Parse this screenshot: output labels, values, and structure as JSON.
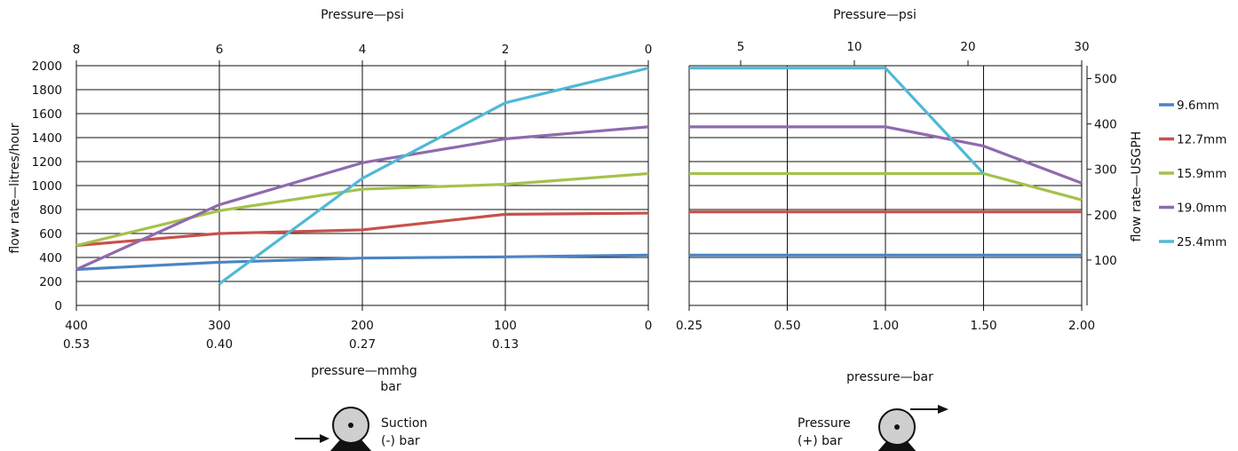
{
  "chart_data": [
    {
      "type": "line",
      "panel": "suction",
      "top_axis_label": "Pressure—psi",
      "top_ticks": [
        "8",
        "6",
        "4",
        "2",
        "0"
      ],
      "ylabel": "flow rate—litres/hour",
      "yticks": [
        "0",
        "200",
        "400",
        "600",
        "800",
        "1000",
        "1200",
        "1400",
        "1600",
        "1800",
        "2000"
      ],
      "ylim": [
        0,
        2000
      ],
      "bottom_ticks_mmhg": [
        "400",
        "300",
        "200",
        "100",
        "0"
      ],
      "bottom_ticks_bar": [
        "0.53",
        "0.40",
        "0.27",
        "0.13"
      ],
      "xlabel_mmhg": "pressure—mmhg",
      "xlabel_bar": "bar",
      "xlim_mmhg": [
        400,
        0
      ],
      "grid": true,
      "series": [
        {
          "name": "9.6mm",
          "color": "#4a84c4",
          "x": [
            400,
            300,
            200,
            100,
            0
          ],
          "y": [
            300,
            360,
            395,
            405,
            420
          ]
        },
        {
          "name": "12.7mm",
          "color": "#c8504a",
          "x": [
            400,
            300,
            200,
            100,
            0
          ],
          "y": [
            500,
            600,
            630,
            760,
            770
          ]
        },
        {
          "name": "15.9mm",
          "color": "#a4c24a",
          "x": [
            400,
            300,
            200,
            100,
            0
          ],
          "y": [
            500,
            790,
            970,
            1010,
            1100
          ]
        },
        {
          "name": "19.0mm",
          "color": "#8e6aae",
          "x": [
            400,
            300,
            200,
            100,
            0
          ],
          "y": [
            300,
            840,
            1190,
            1390,
            1490
          ]
        },
        {
          "name": "25.4mm",
          "color": "#52b8d6",
          "x": [
            300,
            200,
            100,
            0
          ],
          "y": [
            180,
            1060,
            1690,
            1980
          ]
        }
      ]
    },
    {
      "type": "line",
      "panel": "pressure",
      "top_axis_label": "Pressure—psi",
      "top_ticks": [
        "5",
        "10",
        "20",
        "30"
      ],
      "ylabel": "flow rate—USGPH",
      "yticks": [
        "100",
        "200",
        "300",
        "400",
        "500"
      ],
      "bottom_ticks": [
        "0.25",
        "0.50",
        "1.00",
        "1.50",
        "2.00"
      ],
      "xlabel": "pressure—bar",
      "grid": true,
      "series": [
        {
          "name": "9.6mm",
          "color": "#4a84c4",
          "x": [
            0.25,
            2.0
          ],
          "y": [
            420,
            420
          ]
        },
        {
          "name": "12.7mm",
          "color": "#c8504a",
          "x": [
            0.25,
            2.0
          ],
          "y": [
            780,
            780
          ]
        },
        {
          "name": "15.9mm",
          "color": "#a4c24a",
          "x": [
            0.25,
            1.5,
            2.0
          ],
          "y": [
            1100,
            1100,
            880
          ]
        },
        {
          "name": "19.0mm",
          "color": "#8e6aae",
          "x": [
            0.25,
            1.0,
            1.5,
            2.0
          ],
          "y": [
            1490,
            1490,
            1330,
            1020
          ]
        },
        {
          "name": "25.4mm",
          "color": "#52b8d6",
          "x": [
            0.25,
            1.0,
            1.5
          ],
          "y": [
            1980,
            1980,
            1100
          ]
        }
      ]
    }
  ],
  "legend": [
    {
      "label": "9.6mm",
      "color": "#4a84c4"
    },
    {
      "label": "12.7mm",
      "color": "#c8504a"
    },
    {
      "label": "15.9mm",
      "color": "#a4c24a"
    },
    {
      "label": "19.0mm",
      "color": "#8e6aae"
    },
    {
      "label": "25.4mm",
      "color": "#52b8d6"
    }
  ],
  "diagrams": {
    "suction": {
      "line1": "Suction",
      "line2": "(-) bar"
    },
    "pressure": {
      "line1": "Pressure",
      "line2": "(+) bar"
    }
  }
}
